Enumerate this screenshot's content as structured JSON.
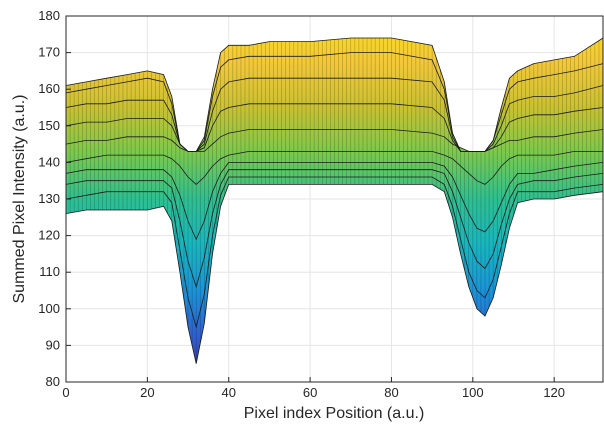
{
  "chart_data": {
    "type": "surface",
    "xlabel": "Pixel index Position (a.u.)",
    "ylabel": "Summed Pixel Intensity (a.u.)",
    "xlim": [
      0,
      132
    ],
    "ylim": [
      80,
      180
    ],
    "xticks": [
      0,
      20,
      40,
      60,
      80,
      100,
      120
    ],
    "yticks": [
      80,
      90,
      100,
      110,
      120,
      130,
      140,
      150,
      160,
      170,
      180
    ],
    "grid": true,
    "colormap": [
      "#3b2a98",
      "#2f5fd1",
      "#1a94d8",
      "#18b6bf",
      "#2ebf90",
      "#7ac94d",
      "#c9c132",
      "#f3c83a",
      "#f9e21a"
    ],
    "series": [
      {
        "x": [
          0,
          5,
          10,
          15,
          20,
          24,
          26,
          28,
          30,
          32,
          34,
          36,
          38,
          40,
          45,
          50,
          60,
          70,
          80,
          90,
          93,
          95,
          97,
          99,
          101,
          103,
          105,
          107,
          109,
          111,
          115,
          120,
          125,
          132
        ],
        "y": [
          126,
          127,
          127,
          127,
          127,
          128,
          124,
          110,
          95,
          85,
          96,
          115,
          128,
          134,
          134,
          134,
          134,
          134,
          134,
          134,
          132,
          125,
          115,
          106,
          100,
          98,
          103,
          112,
          122,
          129,
          130,
          130,
          131,
          132
        ]
      },
      {
        "x": [
          0,
          5,
          10,
          15,
          20,
          24,
          26,
          28,
          30,
          32,
          34,
          36,
          38,
          40,
          45,
          50,
          60,
          70,
          80,
          90,
          93,
          95,
          97,
          99,
          101,
          103,
          105,
          107,
          109,
          111,
          115,
          120,
          125,
          132
        ],
        "y": [
          130,
          131,
          132,
          132,
          132,
          132,
          129,
          116,
          103,
          95,
          104,
          120,
          131,
          136,
          136,
          136,
          136,
          136,
          136,
          136,
          134,
          128,
          119,
          110,
          105,
          103,
          108,
          117,
          126,
          132,
          132,
          132,
          133,
          134
        ]
      },
      {
        "x": [
          0,
          5,
          10,
          15,
          20,
          24,
          26,
          28,
          30,
          32,
          34,
          36,
          38,
          40,
          45,
          50,
          60,
          70,
          80,
          90,
          93,
          95,
          97,
          99,
          101,
          103,
          105,
          107,
          109,
          111,
          115,
          120,
          125,
          132
        ],
        "y": [
          134,
          135,
          135,
          135,
          135,
          135,
          133,
          124,
          113,
          106,
          114,
          126,
          134,
          138,
          138,
          138,
          138,
          138,
          138,
          138,
          137,
          132,
          125,
          118,
          113,
          111,
          115,
          123,
          130,
          134,
          135,
          135,
          136,
          137
        ]
      },
      {
        "x": [
          0,
          5,
          10,
          15,
          20,
          24,
          26,
          28,
          30,
          32,
          34,
          36,
          38,
          40,
          45,
          50,
          60,
          70,
          80,
          90,
          93,
          95,
          97,
          99,
          101,
          103,
          105,
          107,
          109,
          111,
          115,
          120,
          125,
          132
        ],
        "y": [
          137,
          138,
          138,
          138,
          138,
          138,
          136,
          131,
          124,
          119,
          124,
          132,
          137,
          140,
          140,
          140,
          140,
          140,
          140,
          140,
          139,
          136,
          131,
          126,
          122,
          121,
          124,
          129,
          134,
          137,
          137,
          138,
          139,
          140
        ]
      },
      {
        "x": [
          0,
          5,
          10,
          15,
          20,
          24,
          26,
          28,
          30,
          32,
          34,
          36,
          38,
          40,
          45,
          50,
          60,
          70,
          80,
          90,
          93,
          95,
          97,
          99,
          101,
          103,
          105,
          107,
          109,
          111,
          115,
          120,
          125,
          132
        ],
        "y": [
          140,
          141,
          142,
          142,
          142,
          142,
          141,
          139,
          136,
          134,
          136,
          139,
          141,
          142,
          143,
          143,
          143,
          143,
          143,
          143,
          142,
          141,
          139,
          137,
          135,
          134,
          136,
          139,
          141,
          142,
          142,
          142,
          143,
          143
        ]
      },
      {
        "x": [
          0,
          5,
          10,
          15,
          20,
          24,
          26,
          28,
          30,
          32,
          34,
          36,
          38,
          40,
          45,
          50,
          60,
          70,
          80,
          90,
          93,
          95,
          97,
          99,
          101,
          103,
          105,
          107,
          109,
          111,
          115,
          120,
          125,
          132
        ],
        "y": [
          145,
          146,
          146,
          147,
          147,
          147,
          146,
          144,
          143,
          143,
          143,
          145,
          147,
          148,
          149,
          149,
          149,
          149,
          149,
          148,
          147,
          145,
          144,
          143,
          143,
          143,
          144,
          145,
          146,
          146,
          147,
          147,
          148,
          149
        ]
      },
      {
        "x": [
          0,
          5,
          10,
          15,
          20,
          24,
          26,
          28,
          30,
          32,
          34,
          36,
          38,
          40,
          45,
          50,
          60,
          70,
          80,
          90,
          93,
          95,
          97,
          99,
          101,
          103,
          105,
          107,
          109,
          111,
          115,
          120,
          125,
          132
        ],
        "y": [
          150,
          151,
          151,
          152,
          152,
          152,
          150,
          145,
          143,
          143,
          144,
          150,
          154,
          155,
          156,
          156,
          156,
          156,
          156,
          155,
          152,
          146,
          143,
          143,
          143,
          143,
          144,
          147,
          151,
          152,
          153,
          153,
          154,
          155
        ]
      },
      {
        "x": [
          0,
          5,
          10,
          15,
          20,
          24,
          26,
          28,
          30,
          32,
          34,
          36,
          38,
          40,
          45,
          50,
          60,
          70,
          80,
          90,
          93,
          95,
          97,
          99,
          101,
          103,
          105,
          107,
          109,
          111,
          115,
          120,
          125,
          132
        ],
        "y": [
          155,
          156,
          156,
          157,
          157,
          157,
          153,
          145,
          143,
          143,
          145,
          154,
          160,
          162,
          163,
          163,
          163,
          163,
          163,
          162,
          157,
          147,
          143,
          143,
          143,
          143,
          145,
          150,
          156,
          157,
          158,
          158,
          159,
          161
        ]
      },
      {
        "x": [
          0,
          5,
          10,
          15,
          20,
          24,
          26,
          28,
          30,
          32,
          34,
          36,
          38,
          40,
          45,
          50,
          60,
          70,
          80,
          90,
          93,
          95,
          97,
          99,
          101,
          103,
          105,
          107,
          109,
          111,
          115,
          120,
          125,
          132
        ],
        "y": [
          159,
          160,
          161,
          162,
          163,
          162,
          156,
          145,
          143,
          143,
          146,
          158,
          166,
          168,
          169,
          169,
          169,
          170,
          170,
          168,
          160,
          148,
          143,
          143,
          143,
          143,
          146,
          153,
          160,
          162,
          163,
          164,
          165,
          167
        ]
      },
      {
        "x": [
          0,
          5,
          10,
          15,
          20,
          24,
          26,
          28,
          30,
          32,
          34,
          36,
          38,
          40,
          45,
          50,
          60,
          70,
          80,
          90,
          93,
          95,
          97,
          99,
          101,
          103,
          105,
          107,
          109,
          111,
          115,
          120,
          125,
          132
        ],
        "y": [
          161,
          162,
          163,
          164,
          165,
          164,
          158,
          145,
          143,
          143,
          147,
          160,
          170,
          172,
          172,
          173,
          173,
          174,
          174,
          172,
          162,
          148,
          143,
          143,
          143,
          143,
          146,
          155,
          163,
          165,
          167,
          168,
          169,
          174
        ]
      }
    ]
  }
}
